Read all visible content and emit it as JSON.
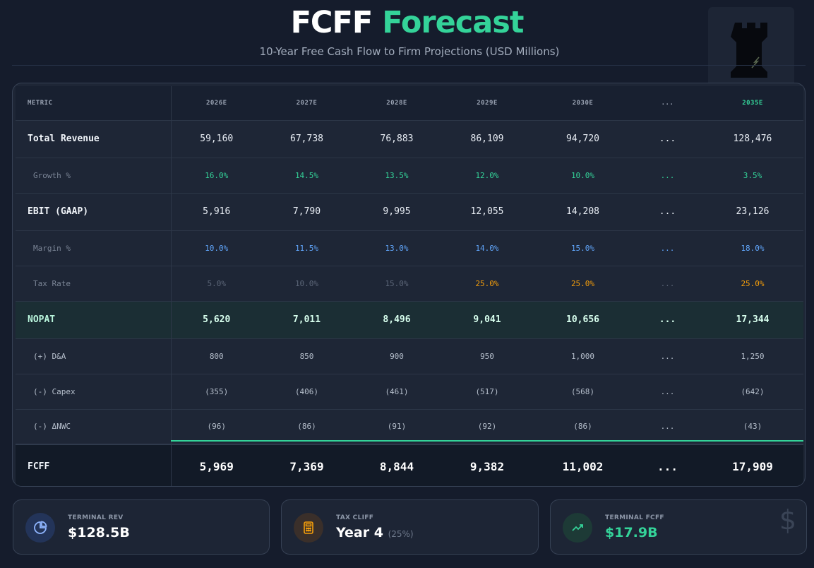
{
  "header": {
    "title_part1": "FCFF",
    "title_part2": "Forecast",
    "subtitle": "10-Year Free Cash Flow to Firm Projections (USD Millions)"
  },
  "colors": {
    "accent_green": "#34d399",
    "accent_blue": "#60a5fa",
    "accent_orange": "#f59e0b",
    "background": "#151c2c"
  },
  "chart_data": {
    "type": "table",
    "columns": [
      "METRIC",
      "2026E",
      "2027E",
      "2028E",
      "2029E",
      "2030E",
      "...",
      "2035E"
    ],
    "rows": [
      {
        "metric": "Total Revenue",
        "values": [
          "59,160",
          "67,738",
          "76,883",
          "86,109",
          "94,720",
          "...",
          "128,476"
        ]
      },
      {
        "metric": "Growth %",
        "values": [
          "16.0%",
          "14.5%",
          "13.5%",
          "12.0%",
          "10.0%",
          "...",
          "3.5%"
        ]
      },
      {
        "metric": "EBIT (GAAP)",
        "values": [
          "5,916",
          "7,790",
          "9,995",
          "12,055",
          "14,208",
          "...",
          "23,126"
        ]
      },
      {
        "metric": "Margin %",
        "values": [
          "10.0%",
          "11.5%",
          "13.0%",
          "14.0%",
          "15.0%",
          "...",
          "18.0%"
        ]
      },
      {
        "metric": "Tax Rate",
        "values": [
          "5.0%",
          "10.0%",
          "15.0%",
          "25.0%",
          "25.0%",
          "...",
          "25.0%"
        ]
      },
      {
        "metric": "NOPAT",
        "values": [
          "5,620",
          "7,011",
          "8,496",
          "9,041",
          "10,656",
          "...",
          "17,344"
        ]
      },
      {
        "metric": "(+) D&A",
        "values": [
          "800",
          "850",
          "900",
          "950",
          "1,000",
          "...",
          "1,250"
        ]
      },
      {
        "metric": "(-) Capex",
        "values": [
          "(355)",
          "(406)",
          "(461)",
          "(517)",
          "(568)",
          "...",
          "(642)"
        ]
      },
      {
        "metric": "(-) ΔNWC",
        "values": [
          "(96)",
          "(86)",
          "(91)",
          "(92)",
          "(86)",
          "...",
          "(43)"
        ]
      },
      {
        "metric": "FCFF",
        "values": [
          "5,969",
          "7,369",
          "8,844",
          "9,382",
          "11,002",
          "...",
          "17,909"
        ]
      }
    ]
  },
  "stats": [
    {
      "label": "TERMINAL REV",
      "value": "$128.5B",
      "icon": "pie-chart-icon"
    },
    {
      "label": "TAX CLIFF",
      "value": "Year 4",
      "sub": "(25%)",
      "icon": "calculator-icon"
    },
    {
      "label": "TERMINAL FCFF",
      "value": "$17.9B",
      "icon": "trending-up-icon",
      "decor": "$"
    }
  ]
}
